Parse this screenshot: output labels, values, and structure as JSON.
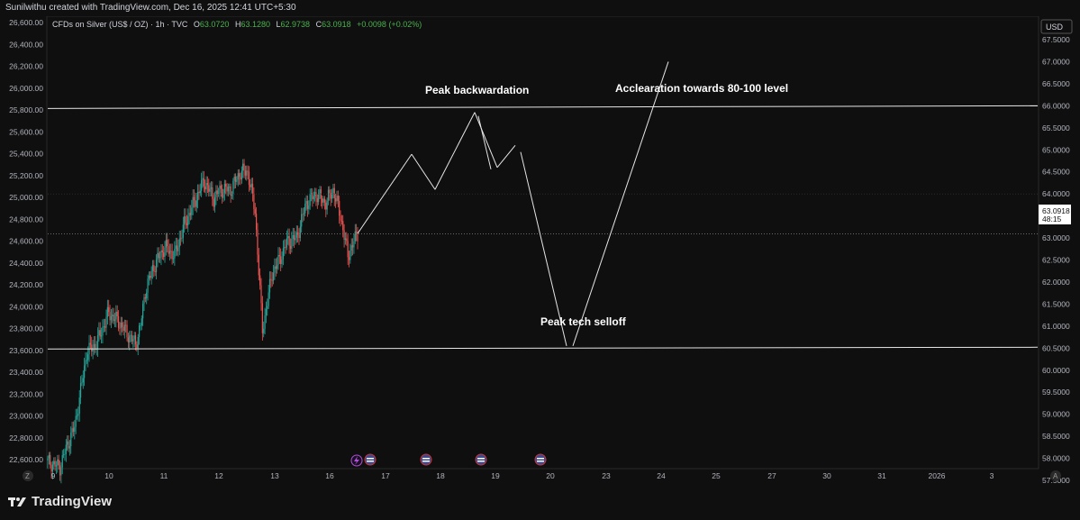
{
  "header": {
    "credit": "Sunilwithu created with TradingView.com, Dec 16, 2025 12:41 UTC+5:30"
  },
  "legend": {
    "symbol": "CFDs on Silver (US$ / OZ) · 1h · TVC",
    "open_label": "O",
    "open": "63.0720",
    "high_label": "H",
    "high": "63.1280",
    "low_label": "L",
    "low": "62.9738",
    "close_label": "C",
    "close": "63.0918",
    "change": "+0.0098 (+0.02%)"
  },
  "currency_button": "USD",
  "price_tag": {
    "price": "63.0918",
    "countdown": "48:15"
  },
  "left_scale": [
    "26,600.00",
    "26,400.00",
    "26,200.00",
    "26,000.00",
    "25,800.00",
    "25,600.00",
    "25,400.00",
    "25,200.00",
    "25,000.00",
    "24,800.00",
    "24,600.00",
    "24,400.00",
    "24,200.00",
    "24,000.00",
    "23,800.00",
    "23,600.00",
    "23,400.00",
    "23,200.00",
    "23,000.00",
    "22,800.00",
    "22,600.00"
  ],
  "right_scale": [
    "67.5000",
    "67.0000",
    "66.5000",
    "66.0000",
    "65.5000",
    "65.0000",
    "64.5000",
    "64.0000",
    "63.5000",
    "63.0000",
    "62.5000",
    "62.0000",
    "61.5000",
    "61.0000",
    "60.5000",
    "60.0000",
    "59.5000",
    "59.0000",
    "58.5000",
    "58.0000",
    "57.5000",
    "57.0000",
    "56.5000"
  ],
  "time_axis": [
    "9",
    "10",
    "11",
    "12",
    "13",
    "16",
    "17",
    "18",
    "19",
    "20",
    "23",
    "24",
    "25",
    "27",
    "30",
    "31",
    "2026",
    "3"
  ],
  "axis_corner_left": "Z",
  "axis_corner_right": "A",
  "annotations": {
    "peak_backwardation": "Peak backwardation",
    "acceleration": "Acclearation towards 80-100 level",
    "tech_selloff": "Peak tech selloff"
  },
  "footer": {
    "brand": "TradingView"
  },
  "colors": {
    "background": "#0f0f0f",
    "up_candle": "#26a69a",
    "down_candle": "#ef5350",
    "bull_text": "#4caf50",
    "drawing": "#e6e6e6",
    "event_flag": "#3a4a8c",
    "lightning": "#b04fd9"
  },
  "chart_data": {
    "type": "candlestick",
    "title": "CFDs on Silver (US$ / OZ) · 1h · TVC",
    "right_axis_range": [
      56.5,
      67.75
    ],
    "left_axis_range": [
      22600,
      26650
    ],
    "last_price": 63.0918,
    "horizontal_levels": [
      66.0,
      60.5
    ],
    "projection_path": [
      {
        "x": "16",
        "y": 63.1
      },
      {
        "x": "17",
        "y": 64.9
      },
      {
        "x": "17.5",
        "y": 64.1
      },
      {
        "x": "18.6",
        "y": 65.85
      },
      {
        "x": "19",
        "y": 64.6
      },
      {
        "x": "19.4",
        "y": 65.1
      },
      {
        "x": "20.2",
        "y": 60.55
      },
      {
        "x": "24.1",
        "y": 67.0
      }
    ]
  }
}
